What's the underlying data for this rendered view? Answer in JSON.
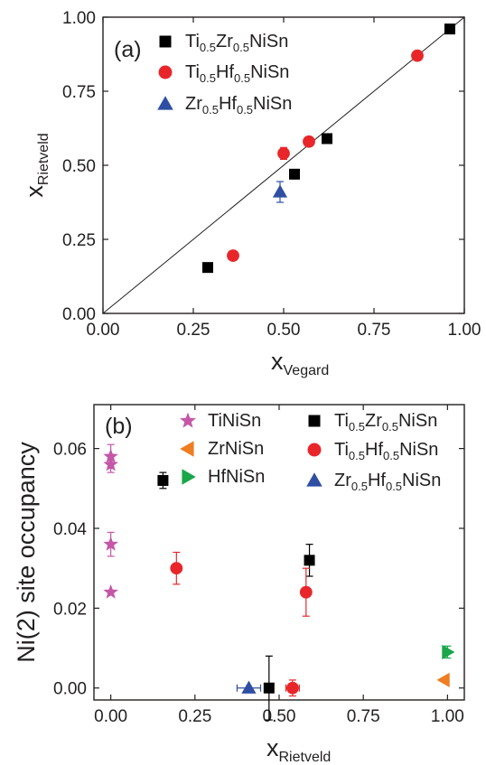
{
  "chart_data": [
    {
      "type": "scatter",
      "panel_label": "(a)",
      "xlabel": {
        "main": "x",
        "sub": "Vegard"
      },
      "ylabel": {
        "main": "x",
        "sub": "Rietveld"
      },
      "xlim": [
        0,
        1
      ],
      "ylim": [
        0,
        1
      ],
      "xticks": [
        "0.00",
        "0.25",
        "0.50",
        "0.75",
        "1.00"
      ],
      "yticks": [
        "0.00",
        "0.25",
        "0.50",
        "0.75",
        "1.00"
      ],
      "diagonal_line": true,
      "legend_position": "top-left",
      "series": [
        {
          "key": "tizr",
          "name_parts": [
            [
              "Ti",
              false
            ],
            [
              "0.5",
              true
            ],
            [
              "Zr",
              false
            ],
            [
              "0.5",
              true
            ],
            [
              "NiSn",
              false
            ]
          ],
          "marker": "square",
          "color": "#000000",
          "points": [
            {
              "x": 0.29,
              "y": 0.155
            },
            {
              "x": 0.53,
              "y": 0.47
            },
            {
              "x": 0.62,
              "y": 0.59
            },
            {
              "x": 0.96,
              "y": 0.96
            }
          ]
        },
        {
          "key": "tihf",
          "name_parts": [
            [
              "Ti",
              false
            ],
            [
              "0.5",
              true
            ],
            [
              "Hf",
              false
            ],
            [
              "0.5",
              true
            ],
            [
              "NiSn",
              false
            ]
          ],
          "marker": "circle",
          "color": "#e8262a",
          "points": [
            {
              "x": 0.36,
              "y": 0.195
            },
            {
              "x": 0.5,
              "y": 0.54,
              "yerr": 0.02
            },
            {
              "x": 0.57,
              "y": 0.58
            },
            {
              "x": 0.87,
              "y": 0.87
            }
          ]
        },
        {
          "key": "zrhf",
          "name_parts": [
            [
              "Zr",
              false
            ],
            [
              "0.5",
              true
            ],
            [
              "Hf",
              false
            ],
            [
              "0.5",
              true
            ],
            [
              "NiSn",
              false
            ]
          ],
          "marker": "triangle-up",
          "color": "#2e4fa3",
          "points": [
            {
              "x": 0.49,
              "y": 0.41,
              "yerr": 0.035
            }
          ]
        }
      ]
    },
    {
      "type": "scatter",
      "panel_label": "(b)",
      "xlabel": {
        "main": "x",
        "sub": "Rietveld"
      },
      "ylabel": {
        "main": "Ni(2) site occupancy",
        "sub": ""
      },
      "xlim": [
        -0.05,
        1.05
      ],
      "ylim": [
        -0.003,
        0.071
      ],
      "xticks": [
        "0.00",
        "0.25",
        "0.50",
        "0.75",
        "1.00"
      ],
      "yticks": [
        "0.00",
        "0.02",
        "0.04",
        "0.06"
      ],
      "legend_position": "top",
      "series": [
        {
          "key": "tinisn",
          "name_parts": [
            [
              "TiNiSn",
              false
            ]
          ],
          "marker": "star",
          "color": "#c556a8",
          "points": [
            {
              "x": 0.0,
              "y": 0.058,
              "yerr": 0.003
            },
            {
              "x": 0.0,
              "y": 0.056,
              "yerr": 0.002
            },
            {
              "x": 0.0,
              "y": 0.036,
              "yerr": 0.003
            },
            {
              "x": 0.0,
              "y": 0.024
            }
          ]
        },
        {
          "key": "zrnisn",
          "name_parts": [
            [
              "ZrNiSn",
              false
            ]
          ],
          "marker": "triangle-left",
          "color": "#ef7d22",
          "points": [
            {
              "x": 0.99,
              "y": 0.002
            }
          ]
        },
        {
          "key": "hfnisn",
          "name_parts": [
            [
              "HfNiSn",
              false
            ]
          ],
          "marker": "triangle-right",
          "color": "#1aa64a",
          "points": [
            {
              "x": 1.0,
              "y": 0.009,
              "yerr": 0.0015
            }
          ]
        },
        {
          "key": "tizr",
          "name_parts": [
            [
              "Ti",
              false
            ],
            [
              "0.5",
              true
            ],
            [
              "Zr",
              false
            ],
            [
              "0.5",
              true
            ],
            [
              "NiSn",
              false
            ]
          ],
          "marker": "square",
          "color": "#000000",
          "points": [
            {
              "x": 0.155,
              "y": 0.052,
              "yerr": 0.002
            },
            {
              "x": 0.47,
              "y": 0.0,
              "yerr": 0.008
            },
            {
              "x": 0.59,
              "y": 0.032,
              "yerr": 0.004
            }
          ]
        },
        {
          "key": "tihf",
          "name_parts": [
            [
              "Ti",
              false
            ],
            [
              "0.5",
              true
            ],
            [
              "Hf",
              false
            ],
            [
              "0.5",
              true
            ],
            [
              "NiSn",
              false
            ]
          ],
          "marker": "circle",
          "color": "#e8262a",
          "points": [
            {
              "x": 0.195,
              "y": 0.03,
              "yerr": 0.004
            },
            {
              "x": 0.54,
              "y": 0.0,
              "yerr": 0.002,
              "xerr": 0.02
            },
            {
              "x": 0.58,
              "y": 0.024,
              "yerr": 0.006
            }
          ]
        },
        {
          "key": "zrhf",
          "name_parts": [
            [
              "Zr",
              false
            ],
            [
              "0.5",
              true
            ],
            [
              "Hf",
              false
            ],
            [
              "0.5",
              true
            ],
            [
              "NiSn",
              false
            ]
          ],
          "marker": "triangle-up",
          "color": "#2e4fa3",
          "points": [
            {
              "x": 0.41,
              "y": 0.0,
              "xerr": 0.035
            }
          ]
        }
      ]
    }
  ]
}
